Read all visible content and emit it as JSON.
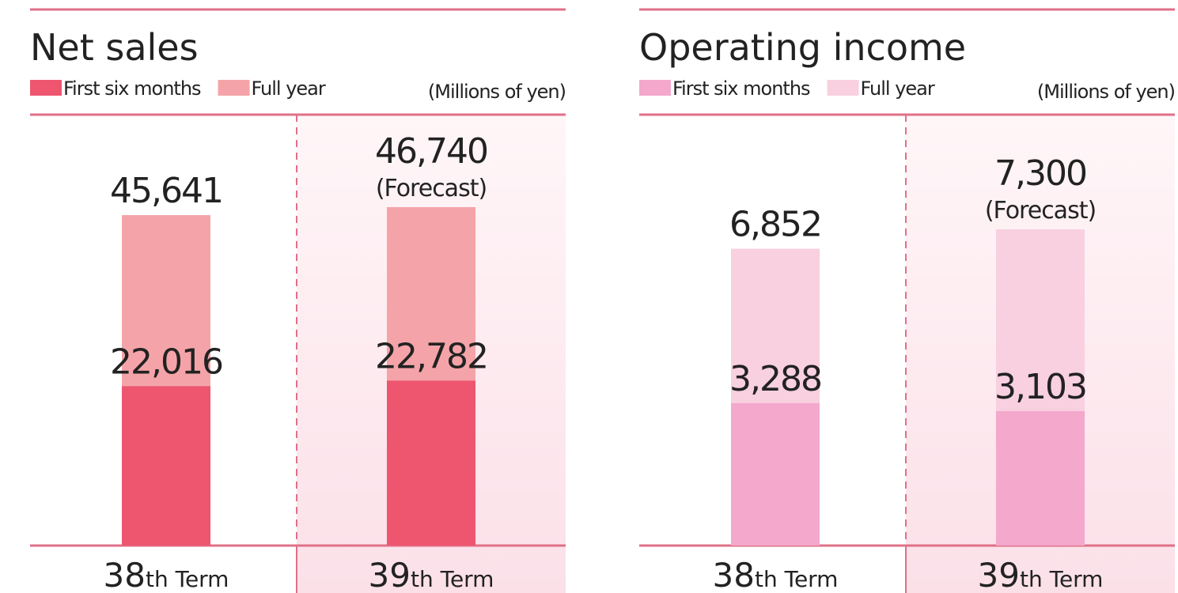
{
  "chart_data": [
    {
      "type": "bar",
      "title": "Net sales",
      "unit": "(Millions of yen)",
      "categories": [
        "38th Term",
        "39th Term"
      ],
      "annotation": "(Forecast)",
      "series": [
        {
          "name": "First six months",
          "color": "#ee5670",
          "values": [
            22016,
            22782
          ],
          "value_labels": [
            "22,016",
            "22,782"
          ]
        },
        {
          "name": "Full year",
          "color": "#f4a4a8",
          "values": [
            45641,
            46740
          ],
          "value_labels": [
            "45,641",
            "46,740"
          ]
        }
      ]
    },
    {
      "type": "bar",
      "title": "Operating income",
      "unit": "(Millions of yen)",
      "categories": [
        "38th Term",
        "39th Term"
      ],
      "annotation": "(Forecast)",
      "series": [
        {
          "name": "First six months",
          "color": "#f4a8cc",
          "values": [
            3288,
            3103
          ],
          "value_labels": [
            "3,288",
            "3,103"
          ]
        },
        {
          "name": "Full year",
          "color": "#f8d0e0",
          "values": [
            6852,
            7300
          ],
          "value_labels": [
            "6,852",
            "7,300"
          ]
        }
      ]
    }
  ]
}
